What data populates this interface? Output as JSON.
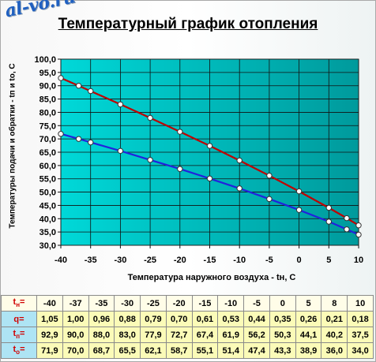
{
  "watermark": "al-vo.ru",
  "colors": {
    "plot_bg_left": "#00d8d8",
    "plot_bg_right": "#009a9c",
    "supply_line": "#c00000",
    "return_line": "#2222dd",
    "marker_fill": "#ffffff",
    "table_label_bg": "#aee4f4",
    "table_cell_bg": "#fbfbb8",
    "table_label_text": "#d00000"
  },
  "chart_data": {
    "type": "line",
    "title": "Температурный график отопления",
    "xlabel": "Температура наружного воздуха - tн, С",
    "ylabel": "Температуры подачи и обратки - tп и tо, С",
    "xlim": [
      -40,
      10
    ],
    "ylim": [
      30,
      100
    ],
    "xticks": [
      -40,
      -35,
      -30,
      -25,
      -20,
      -15,
      -10,
      -5,
      0,
      5,
      10
    ],
    "yticks": [
      30,
      35,
      40,
      45,
      50,
      55,
      60,
      65,
      70,
      75,
      80,
      85,
      90,
      95,
      100
    ],
    "grid": true,
    "legend": false,
    "x": [
      -40,
      -37,
      -35,
      -30,
      -25,
      -20,
      -15,
      -10,
      -5,
      0,
      5,
      8,
      10
    ],
    "series": [
      {
        "key": "tp",
        "values": [
          92.9,
          90.0,
          88.0,
          83.0,
          77.9,
          72.7,
          67.4,
          61.9,
          56.2,
          50.3,
          44.1,
          40.2,
          37.5
        ]
      },
      {
        "key": "to",
        "values": [
          71.9,
          70.0,
          68.7,
          65.5,
          62.1,
          58.7,
          55.1,
          51.4,
          47.4,
          43.3,
          38.9,
          36.0,
          34.0
        ]
      }
    ]
  },
  "table": {
    "rows": [
      {
        "head": "t",
        "sub": "н",
        "suffix": "=",
        "values": [
          "-40",
          "-37",
          "-35",
          "-30",
          "-25",
          "-20",
          "-15",
          "-10",
          "-5",
          "0",
          "5",
          "8",
          "10"
        ]
      },
      {
        "head": "q",
        "sub": "",
        "suffix": "=",
        "values": [
          "1,05",
          "1,00",
          "0,96",
          "0,88",
          "0,79",
          "0,70",
          "0,61",
          "0,53",
          "0,44",
          "0,35",
          "0,26",
          "0,21",
          "0,18"
        ]
      },
      {
        "head": "t",
        "sub": "п",
        "suffix": "=",
        "values": [
          "92,9",
          "90,0",
          "88,0",
          "83,0",
          "77,9",
          "72,7",
          "67,4",
          "61,9",
          "56,2",
          "50,3",
          "44,1",
          "40,2",
          "37,5"
        ]
      },
      {
        "head": "t",
        "sub": "о",
        "suffix": "=",
        "values": [
          "71,9",
          "70,0",
          "68,7",
          "65,5",
          "62,1",
          "58,7",
          "55,1",
          "51,4",
          "47,4",
          "43,3",
          "38,9",
          "36,0",
          "34,0"
        ]
      }
    ]
  }
}
